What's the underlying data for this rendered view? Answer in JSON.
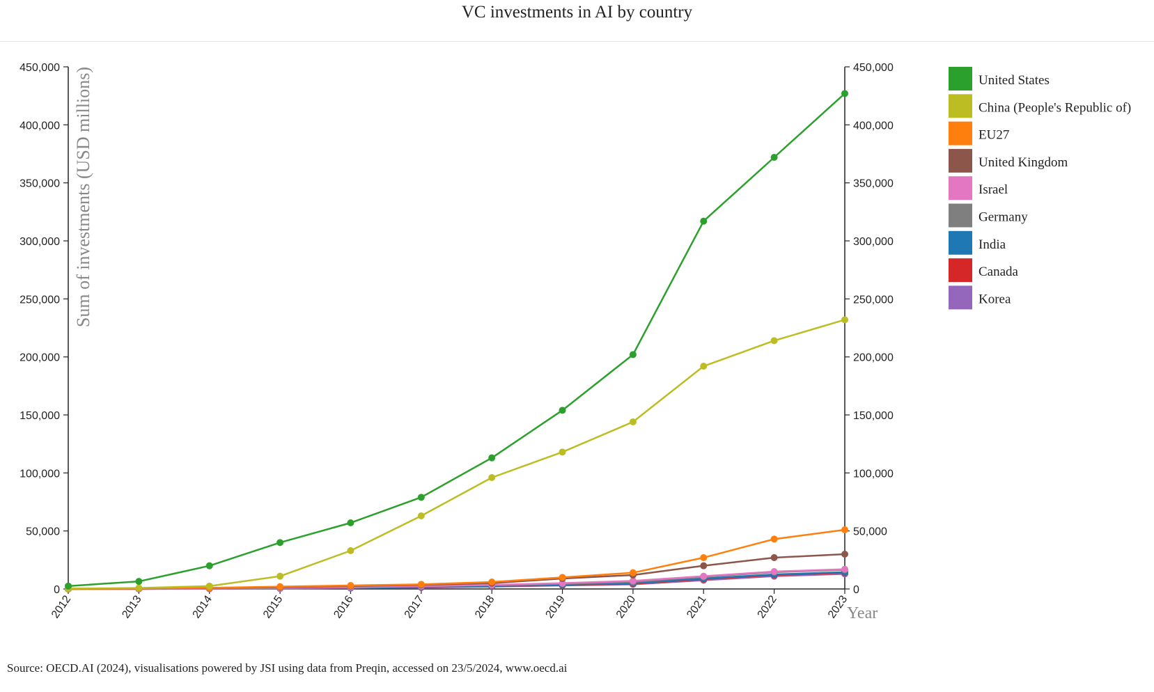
{
  "chart_data": {
    "type": "line",
    "title": "VC investments in AI by country",
    "ylabel": "Sum of investments (USD millions)",
    "xlabel": "Year",
    "ylim": [
      0,
      450000
    ],
    "y_ticks": [
      0,
      50000,
      100000,
      150000,
      200000,
      250000,
      300000,
      350000,
      400000,
      450000
    ],
    "y_tick_labels": [
      "0",
      "50,000",
      "100,000",
      "150,000",
      "200,000",
      "250,000",
      "300,000",
      "350,000",
      "400,000",
      "450,000"
    ],
    "x": [
      "2012",
      "2013",
      "2014",
      "2015",
      "2016",
      "2017",
      "2018",
      "2019",
      "2020",
      "2021",
      "2022",
      "2023"
    ],
    "legend_position": "right",
    "series": [
      {
        "name": "United States",
        "color": "#2ca02c",
        "values": [
          2500,
          6500,
          20000,
          40000,
          57000,
          79000,
          113000,
          154000,
          202000,
          317000,
          372000,
          427000
        ]
      },
      {
        "name": "China (People's Republic of)",
        "color": "#bcbd22",
        "values": [
          300,
          800,
          2500,
          11000,
          33000,
          63000,
          96000,
          118000,
          144000,
          192000,
          214000,
          232000
        ]
      },
      {
        "name": "EU27",
        "color": "#ff7f0e",
        "values": [
          200,
          500,
          1000,
          2000,
          3000,
          4000,
          6000,
          10000,
          14000,
          27000,
          43000,
          51000
        ]
      },
      {
        "name": "United Kingdom",
        "color": "#8c564b",
        "values": [
          100,
          300,
          800,
          1500,
          2500,
          3500,
          5000,
          9000,
          12000,
          20000,
          27000,
          30000
        ]
      },
      {
        "name": "Israel",
        "color": "#e377c2",
        "values": [
          50,
          150,
          400,
          800,
          1500,
          2500,
          3500,
          5000,
          7000,
          11000,
          15000,
          17000
        ]
      },
      {
        "name": "Germany",
        "color": "#7f7f7f",
        "values": [
          50,
          150,
          400,
          800,
          1400,
          2300,
          3200,
          4500,
          6000,
          10500,
          14500,
          16500
        ]
      },
      {
        "name": "India",
        "color": "#1f77b4",
        "values": [
          30,
          100,
          300,
          600,
          1000,
          1700,
          2500,
          3700,
          5000,
          9000,
          12500,
          14500
        ]
      },
      {
        "name": "Canada",
        "color": "#d62728",
        "values": [
          30,
          100,
          300,
          600,
          1000,
          1600,
          2300,
          3400,
          4500,
          8500,
          12000,
          14000
        ]
      },
      {
        "name": "Korea",
        "color": "#9467bd",
        "values": [
          20,
          80,
          200,
          400,
          800,
          1300,
          2000,
          3000,
          4000,
          7500,
          11000,
          13000
        ]
      }
    ]
  },
  "source": "Source: OECD.AI (2024), visualisations powered by JSI using data from Preqin, accessed on 23/5/2024, www.oecd.ai"
}
